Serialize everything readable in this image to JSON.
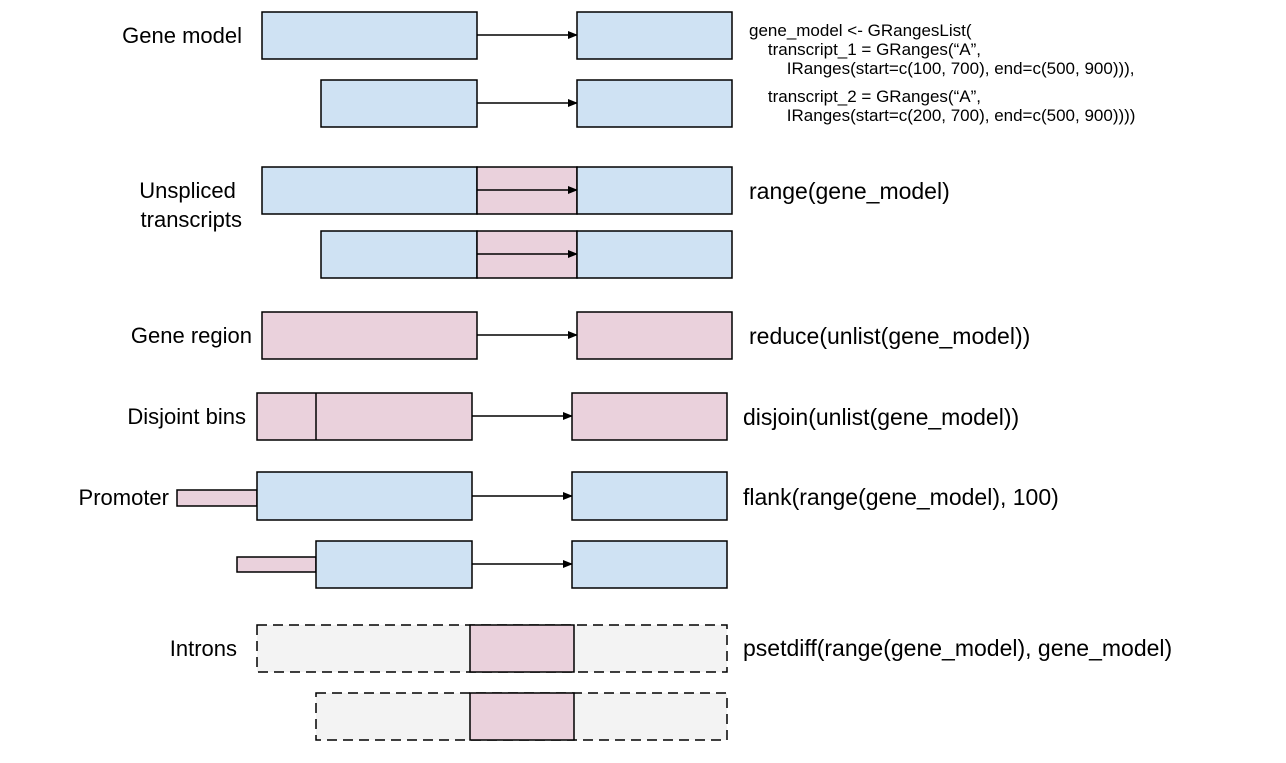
{
  "rows": [
    {
      "label": "Gene model",
      "code": ""
    },
    {
      "label": "Unspliced\ntranscripts",
      "code": "range(gene_model)"
    },
    {
      "label": "Gene region",
      "code": "reduce(unlist(gene_model))"
    },
    {
      "label": "Disjoint bins",
      "code": "disjoin(unlist(gene_model))"
    },
    {
      "label": "Promoter",
      "code": "flank(range(gene_model), 100)"
    },
    {
      "label": "Introns",
      "code": "psetdiff(range(gene_model), gene_model)"
    }
  ],
  "gene_model_code": [
    "gene_model <- GRangesList(",
    "    transcript_1 = GRanges(“A”,",
    "        IRanges(start=c(100, 700), end=c(500, 900))),",
    "    transcript_2 = GRanges(“A”,",
    "        IRanges(start=c(200, 700), end=c(500, 900))))"
  ],
  "colors": {
    "exon": "#cfe2f3",
    "highlight": "#ead1dc",
    "intron_bg": "#f3f3f3"
  }
}
